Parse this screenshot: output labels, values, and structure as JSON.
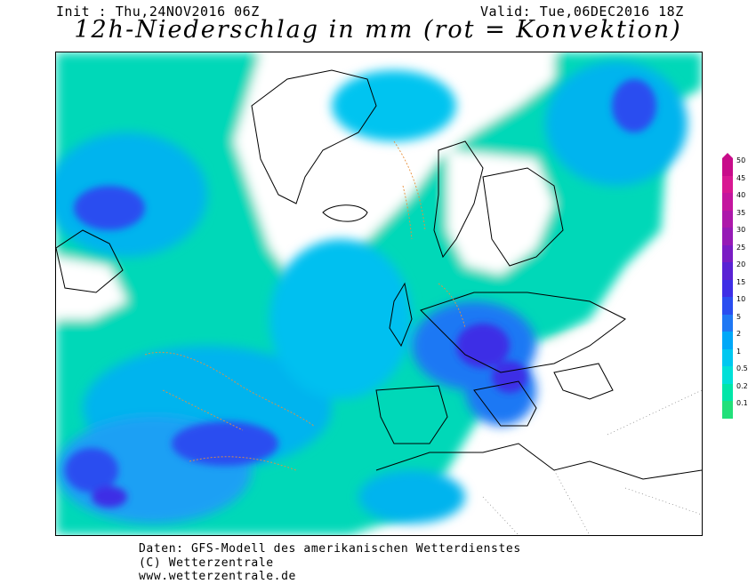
{
  "header": {
    "init": "Init : Thu,24NOV2016 06Z",
    "valid": "Valid: Tue,06DEC2016 18Z",
    "title": "12h-Niederschlag in mm (rot = Konvektion)"
  },
  "legend": {
    "levels": [
      "0.1",
      "0.2",
      "0.5",
      "1",
      "2",
      "5",
      "10",
      "15",
      "20",
      "25",
      "30",
      "35",
      "40",
      "45",
      "50"
    ],
    "colors": [
      "#22e07a",
      "#00e6a8",
      "#00e0d8",
      "#00c8f0",
      "#00a8f8",
      "#1f78f4",
      "#2a4ef0",
      "#3e2ee6",
      "#5a22d4",
      "#7a1cc4",
      "#961ab6",
      "#ad18aa",
      "#c4169e",
      "#d81892",
      "#c80c8a"
    ]
  },
  "map": {
    "background_color": "#ffffff",
    "land_outline_color": "#000000",
    "convective_contour_color": "#e8903c"
  },
  "footer": {
    "line1": "Daten: GFS-Modell des amerikanischen Wetterdienstes",
    "line2": "(C) Wetterzentrale",
    "line3": "www.wetterzentrale.de"
  }
}
